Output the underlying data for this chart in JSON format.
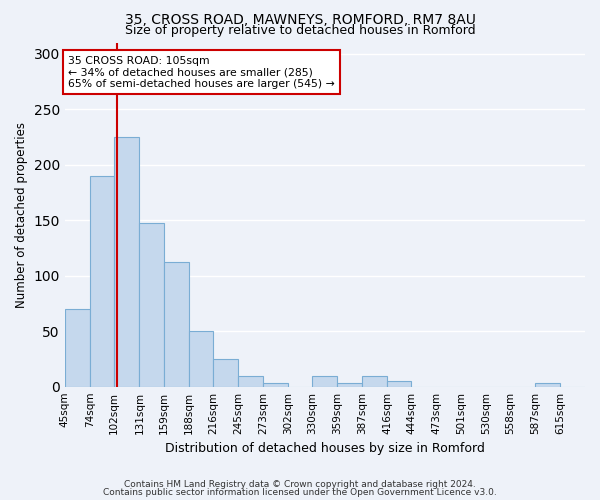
{
  "title1": "35, CROSS ROAD, MAWNEYS, ROMFORD, RM7 8AU",
  "title2": "Size of property relative to detached houses in Romford",
  "xlabel": "Distribution of detached houses by size in Romford",
  "ylabel": "Number of detached properties",
  "bar_color": "#c5d8ed",
  "bar_edge_color": "#7aadd4",
  "background_color": "#eef2f9",
  "grid_color": "#ffffff",
  "annotation_box_color": "#ffffff",
  "annotation_border_color": "#cc0000",
  "red_line_color": "#cc0000",
  "bin_labels": [
    "45sqm",
    "74sqm",
    "102sqm",
    "131sqm",
    "159sqm",
    "188sqm",
    "216sqm",
    "245sqm",
    "273sqm",
    "302sqm",
    "330sqm",
    "359sqm",
    "387sqm",
    "416sqm",
    "444sqm",
    "473sqm",
    "501sqm",
    "530sqm",
    "558sqm",
    "587sqm",
    "615sqm"
  ],
  "bin_edges": [
    45,
    74,
    102,
    131,
    159,
    188,
    216,
    245,
    273,
    302,
    330,
    359,
    387,
    416,
    444,
    473,
    501,
    530,
    558,
    587,
    615,
    644
  ],
  "bar_heights": [
    70,
    190,
    225,
    147,
    112,
    50,
    25,
    10,
    3,
    0,
    10,
    3,
    10,
    5,
    0,
    0,
    0,
    0,
    0,
    3,
    0
  ],
  "ylim": [
    0,
    310
  ],
  "yticks": [
    0,
    50,
    100,
    150,
    200,
    250,
    300
  ],
  "red_line_x": 105,
  "annotation_title": "35 CROSS ROAD: 105sqm",
  "annotation_line1": "← 34% of detached houses are smaller (285)",
  "annotation_line2": "65% of semi-detached houses are larger (545) →",
  "footer1": "Contains HM Land Registry data © Crown copyright and database right 2024.",
  "footer2": "Contains public sector information licensed under the Open Government Licence v3.0."
}
